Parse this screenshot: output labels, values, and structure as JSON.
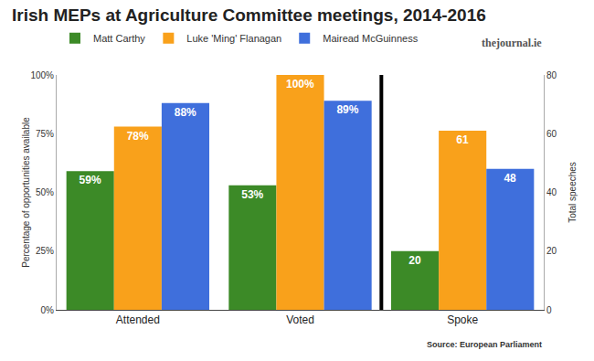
{
  "chart_data": {
    "type": "bar",
    "title": "Irish MEPs at Agriculture Committee meetings, 2014-2016",
    "credit": "thejournal.ie",
    "source": "Source: European Parliament",
    "categories": [
      "Attended",
      "Voted",
      "Spoke"
    ],
    "ylabel": "Percentage of opportunities available",
    "y2label": "Total speeches",
    "ylim": [
      0,
      100
    ],
    "yticks": [
      {
        "value": 0,
        "label": "0%"
      },
      {
        "value": 25,
        "label": "25%"
      },
      {
        "value": 50,
        "label": "50%"
      },
      {
        "value": 75,
        "label": "75%"
      },
      {
        "value": 100,
        "label": "100%"
      }
    ],
    "y2lim": [
      0,
      80
    ],
    "y2ticks": [
      0,
      20,
      40,
      60,
      80
    ],
    "grid": false,
    "legend": "top left",
    "data_labels": true,
    "series": [
      {
        "name": "Matt Carthy",
        "color": "#3c8a27",
        "values": [
          59,
          53,
          null
        ],
        "value_labels": [
          "59%",
          "53%",
          null
        ]
      },
      {
        "name": "Luke 'Ming' Flanagan",
        "color": "#f9a11b",
        "values": [
          78,
          100,
          null
        ],
        "value_labels": [
          "78%",
          "100%",
          null
        ]
      },
      {
        "name": "Mairead McGuinness",
        "color": "#3f6fdc",
        "values": [
          88,
          89,
          null
        ],
        "value_labels": [
          "88%",
          "89%",
          null
        ]
      },
      {
        "name": "Matt Carthy",
        "color": "#3c8a27",
        "values": [
          null,
          null,
          20
        ],
        "axis": "y2"
      },
      {
        "name": "Luke 'Ming' Flanagan",
        "color": "#f9a11b",
        "values": [
          null,
          null,
          61
        ],
        "axis": "y2"
      },
      {
        "name": "Mairead McGuinness",
        "color": "#3f6fdc",
        "values": [
          null,
          null,
          48
        ],
        "axis": "y2"
      }
    ]
  }
}
